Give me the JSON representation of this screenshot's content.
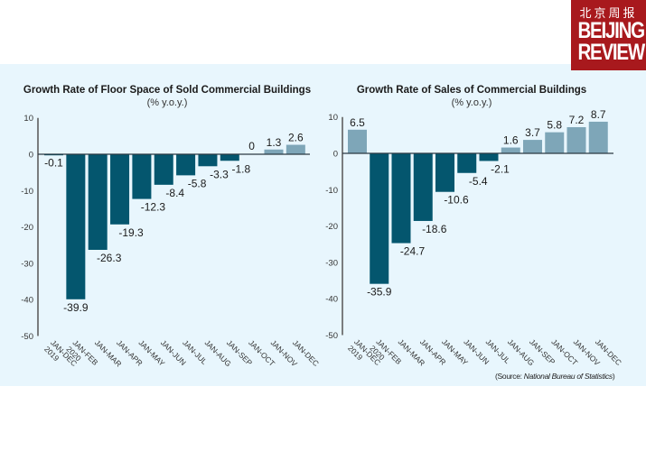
{
  "logo": {
    "chinese": "北京周报",
    "line1": "BEIJING",
    "line2": "REVIEW"
  },
  "colors": {
    "negative": "#04566e",
    "positive": "#7ea6b8",
    "axis": "#555555",
    "panel": "#e8f6fd",
    "logo": "#a8191d"
  },
  "source": {
    "prefix": "(Source: ",
    "name": "National Bureau of Statistics",
    "suffix": ")"
  },
  "chart_data": [
    {
      "type": "bar",
      "title": "Growth Rate of Floor Space of Sold Commercial Buildings",
      "subtitle": "(% y.o.y.)",
      "categories": [
        "JAN-DEC 2019",
        "JAN-FEB 2020",
        "JAN-MAR",
        "JAN-APR",
        "JAN-MAY",
        "JAN-JUN",
        "JAN-JUL",
        "JAN-AUG",
        "JAN-SEP",
        "JAN-OCT",
        "JAN-NOV",
        "JAN-DEC"
      ],
      "values": [
        -0.1,
        -39.9,
        -26.3,
        -19.3,
        -12.3,
        -8.4,
        -5.8,
        -3.3,
        -1.8,
        0,
        1.3,
        2.6
      ],
      "data_labels": [
        "-0.1",
        "-39.9",
        "-26.3",
        "-19.3",
        "-12.3",
        "-8.4",
        "-5.8",
        "-3.3",
        "-1.8",
        "0",
        "1.3",
        "2.6"
      ],
      "yticks": [
        10,
        0,
        -10,
        -20,
        -30,
        -40,
        -50
      ],
      "ylim": [
        -50,
        10
      ],
      "xlabel": "",
      "ylabel": "",
      "grid": false,
      "legend": "none"
    },
    {
      "type": "bar",
      "title": "Growth Rate of Sales of Commercial Buildings",
      "subtitle": "(% y.o.y.)",
      "categories": [
        "JAN-DEC 2019",
        "JAN-FEB 2020",
        "JAN-MAR",
        "JAN-APR",
        "JAN-MAY",
        "JAN-JUN",
        "JAN-JUL",
        "JAN-AUG",
        "JAN-SEP",
        "JAN-OCT",
        "JAN-NOV",
        "JAN-DEC"
      ],
      "values": [
        6.5,
        -35.9,
        -24.7,
        -18.6,
        -10.6,
        -5.4,
        -2.1,
        1.6,
        3.7,
        5.8,
        7.2,
        8.7
      ],
      "data_labels": [
        "6.5",
        "-35.9",
        "-24.7",
        "-18.6",
        "-10.6",
        "-5.4",
        "-2.1",
        "1.6",
        "3.7",
        "5.8",
        "7.2",
        "8.7"
      ],
      "yticks": [
        10,
        0,
        -10,
        -20,
        -30,
        -40,
        -50
      ],
      "ylim": [
        -50,
        10
      ],
      "xlabel": "",
      "ylabel": "",
      "grid": false,
      "legend": "none"
    }
  ]
}
